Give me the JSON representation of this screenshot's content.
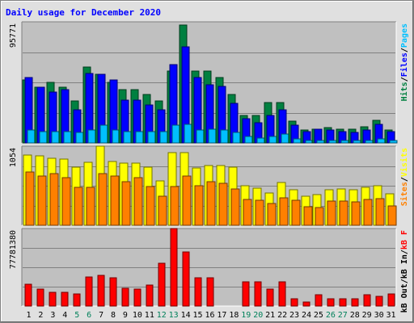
{
  "chart_data": [
    {
      "type": "bar",
      "title": "Daily usage for December 2020",
      "categories": [
        "1",
        "2",
        "3",
        "4",
        "5",
        "6",
        "7",
        "8",
        "9",
        "10",
        "11",
        "12",
        "13",
        "14",
        "15",
        "16",
        "17",
        "18",
        "19",
        "20",
        "21",
        "22",
        "23",
        "24",
        "25",
        "26",
        "27",
        "28",
        "29",
        "30",
        "31"
      ],
      "weekend_days": [
        "5",
        "6",
        "12",
        "13",
        "19",
        "20",
        "26",
        "27"
      ],
      "ymax_label": "95771",
      "ylim": [
        0,
        95771
      ],
      "legend": [
        "Pages",
        "/",
        "Files",
        "/",
        "Hits"
      ],
      "series": [
        {
          "name": "Hits",
          "color": "#008040",
          "values": [
            50000,
            44000,
            48000,
            44000,
            33000,
            60000,
            54000,
            48000,
            42000,
            42000,
            38000,
            33000,
            57000,
            93000,
            57000,
            57000,
            52000,
            38000,
            22000,
            22000,
            32000,
            32000,
            17000,
            10000,
            11000,
            12000,
            11000,
            11000,
            13000,
            18000,
            10000
          ]
        },
        {
          "name": "Files",
          "color": "#0000ff",
          "values": [
            52000,
            44000,
            40000,
            42000,
            26000,
            55000,
            54000,
            50000,
            34000,
            34000,
            30000,
            26000,
            62000,
            76000,
            52000,
            46000,
            45000,
            31000,
            19000,
            16000,
            22000,
            26000,
            14000,
            9000,
            11000,
            10000,
            9000,
            8000,
            10000,
            15000,
            9000
          ]
        },
        {
          "name": "Pages",
          "color": "#00bfff",
          "values": [
            10000,
            9000,
            9000,
            9000,
            8000,
            10000,
            14000,
            10000,
            9000,
            9000,
            9000,
            9000,
            14000,
            15000,
            10000,
            11000,
            10000,
            8000,
            5000,
            4000,
            5000,
            7000,
            3000,
            2000,
            2000,
            2000,
            2000,
            2000,
            2000,
            3000,
            2000
          ]
        }
      ]
    },
    {
      "type": "bar",
      "ymax_label": "1054",
      "ylim": [
        0,
        1054
      ],
      "legend": [
        "Visits",
        "/",
        "Sites"
      ],
      "series": [
        {
          "name": "Visits",
          "color": "#ffff00",
          "values": [
            935,
            920,
            890,
            880,
            775,
            840,
            1054,
            850,
            825,
            825,
            775,
            590,
            965,
            965,
            765,
            800,
            800,
            775,
            525,
            490,
            430,
            565,
            470,
            390,
            405,
            475,
            480,
            475,
            510,
            525,
            420
          ]
        },
        {
          "name": "Sites",
          "color": "#ff8000",
          "values": [
            705,
            655,
            690,
            630,
            510,
            510,
            690,
            660,
            580,
            630,
            515,
            385,
            520,
            660,
            525,
            580,
            560,
            480,
            340,
            335,
            290,
            370,
            330,
            250,
            240,
            325,
            325,
            315,
            340,
            350,
            255
          ]
        }
      ]
    },
    {
      "type": "bar",
      "ymax_label": "77781380",
      "ylim": [
        0,
        77781380
      ],
      "legend": [
        "kB F",
        "/",
        "kB In",
        "/",
        "kB Out"
      ],
      "series": [
        {
          "name": "kB F",
          "color": "#ff0000",
          "values": [
            22000000,
            17000000,
            14000000,
            14000000,
            12000000,
            29000000,
            31000000,
            28000000,
            18000000,
            17000000,
            21000000,
            43000000,
            77781380,
            54000000,
            28000000,
            28000000,
            0,
            0,
            24000000,
            24000000,
            17000000,
            24000000,
            7000000,
            4000000,
            11000000,
            7000000,
            7000000,
            7000000,
            11000000,
            10000000,
            12000000
          ]
        }
      ]
    }
  ]
}
